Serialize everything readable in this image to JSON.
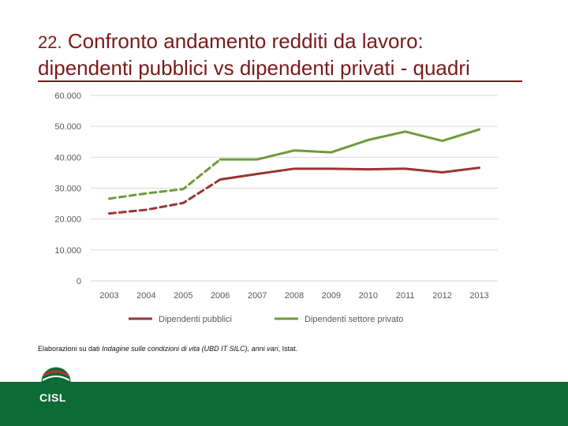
{
  "slide": {
    "number": "22.",
    "title_line1": "Confronto andamento redditi da lavoro:",
    "title_line2": "dipendenti pubblici vs dipendenti privati - quadri"
  },
  "source": {
    "prefix": "Elaborazioni su dati ",
    "italic": "Indagine sulle condizioni di vita (UBD IT SILC), anni vari",
    "suffix": ", Istat."
  },
  "logo": {
    "text": "CISL"
  },
  "colors": {
    "title": "#7a1a1a",
    "public": "#9b3434",
    "private": "#6f9a3a",
    "footer": "#0d6b35"
  },
  "chart_data": {
    "type": "line",
    "categories": [
      "2003",
      "2004",
      "2005",
      "2006",
      "2007",
      "2008",
      "2009",
      "2010",
      "2011",
      "2012",
      "2013"
    ],
    "y_ticks": [
      "0",
      "10.000",
      "20.000",
      "30.000",
      "40.000",
      "50.000",
      "60.000"
    ],
    "ylim": [
      0,
      60000
    ],
    "grid": true,
    "legend": "bottom",
    "dashed_until_index": 3,
    "series": [
      {
        "name": "Dipendenti pubblici",
        "color": "#9b3434",
        "values": [
          21800,
          23000,
          25200,
          32800,
          34600,
          36300,
          36300,
          36100,
          36300,
          35100,
          36600
        ]
      },
      {
        "name": "Dipendenti settore privato",
        "color": "#6f9a3a",
        "values": [
          26600,
          28300,
          29700,
          39300,
          39300,
          42200,
          41600,
          45600,
          48300,
          45300,
          49000
        ]
      }
    ]
  }
}
